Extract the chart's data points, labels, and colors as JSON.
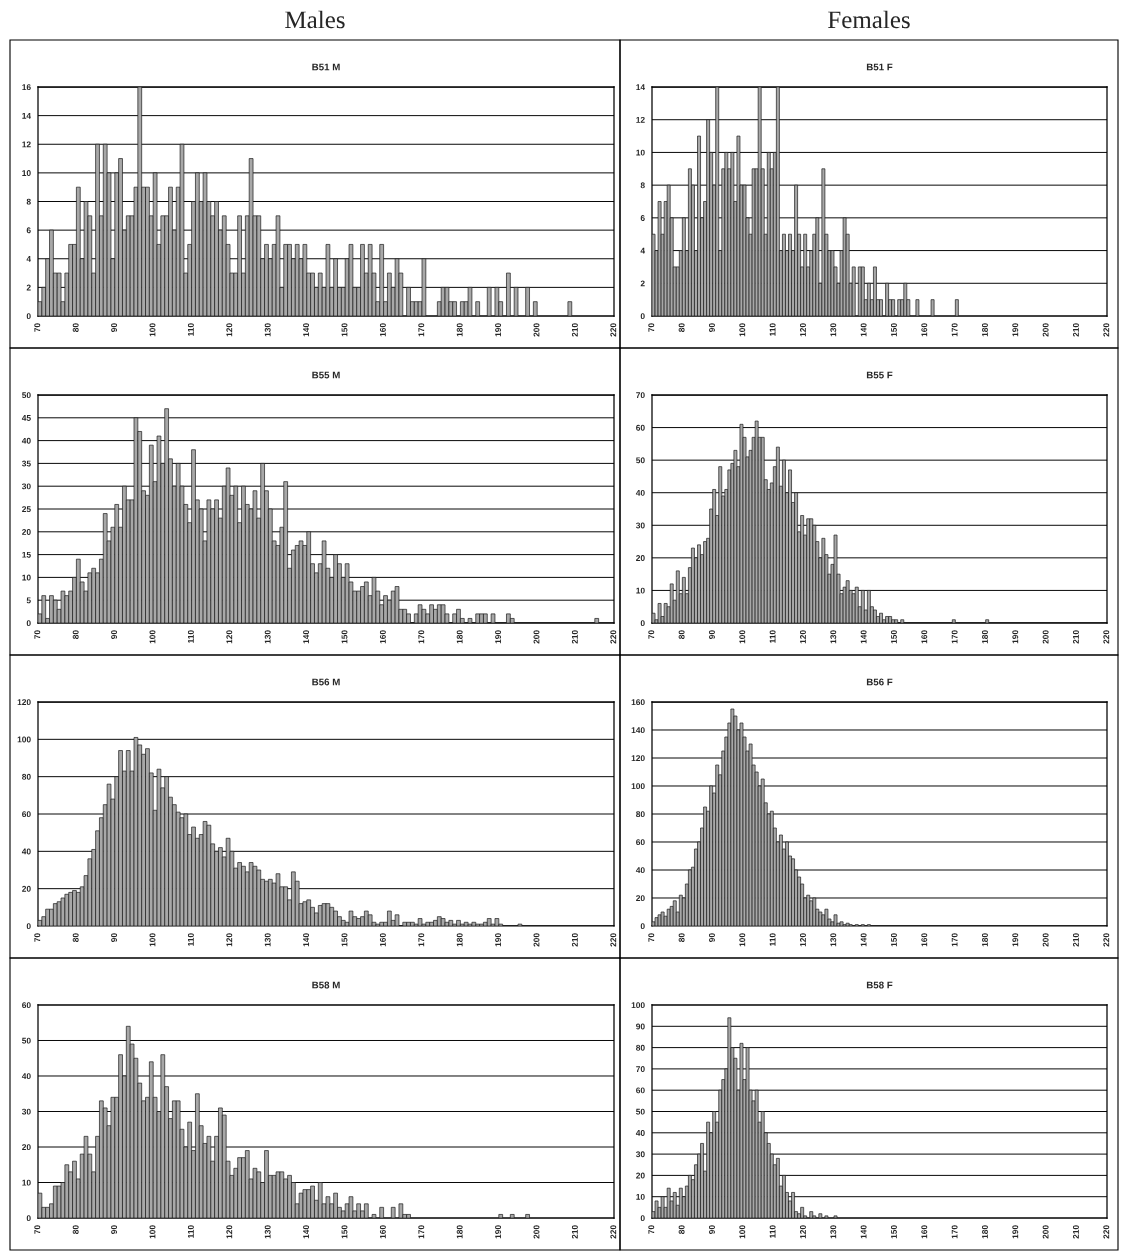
{
  "chart_data": [
    {
      "type": "histogram",
      "title": "Males",
      "subtitle": "B51 M",
      "color": "#a8a8a8",
      "grid": "y",
      "xlim": [
        70,
        220
      ],
      "xticks": [
        70,
        80,
        90,
        100,
        110,
        120,
        130,
        140,
        150,
        160,
        170,
        180,
        190,
        200,
        210,
        220
      ],
      "ylim": [
        0,
        16
      ],
      "yticks": [
        0,
        2,
        4,
        6,
        8,
        10,
        12,
        14,
        16
      ],
      "bins": [
        70,
        71,
        72,
        73,
        74,
        75,
        76,
        77,
        78,
        79,
        80,
        81,
        82,
        83,
        84,
        85,
        86,
        87,
        88,
        89,
        90,
        91,
        92,
        93,
        94,
        95,
        96,
        97,
        98,
        99,
        100,
        101,
        102,
        103,
        104,
        105,
        106,
        107,
        108,
        109,
        110,
        111,
        112,
        113,
        114,
        115,
        116,
        117,
        118,
        119,
        120,
        121,
        122,
        123,
        124,
        125,
        126,
        127,
        128,
        129,
        130,
        131,
        132,
        133,
        134,
        135,
        136,
        137,
        138,
        139,
        140,
        141,
        142,
        143,
        144,
        145,
        146,
        147,
        148,
        149,
        150,
        151,
        152,
        153,
        154,
        155,
        156,
        157,
        158,
        159,
        160,
        161,
        162,
        163,
        164,
        165,
        166,
        167,
        168,
        169,
        170,
        171,
        172,
        173,
        174,
        175,
        176,
        177,
        178,
        179,
        180,
        181,
        182,
        183,
        184,
        185,
        186,
        187,
        188,
        189,
        190,
        191,
        192,
        193,
        194,
        195,
        196,
        197,
        198,
        199,
        200,
        201,
        202,
        203,
        204,
        205,
        206,
        207,
        208,
        209
      ],
      "values": [
        1,
        2,
        4,
        6,
        3,
        3,
        1,
        3,
        5,
        5,
        9,
        4,
        8,
        7,
        3,
        12,
        7,
        12,
        10,
        4,
        10,
        11,
        6,
        7,
        7,
        9,
        16,
        9,
        9,
        7,
        10,
        5,
        7,
        7,
        9,
        6,
        9,
        12,
        3,
        5,
        8,
        10,
        8,
        10,
        8,
        7,
        8,
        6,
        7,
        5,
        3,
        3,
        7,
        3,
        7,
        11,
        7,
        7,
        4,
        5,
        4,
        5,
        7,
        2,
        5,
        5,
        4,
        5,
        4,
        5,
        3,
        3,
        2,
        3,
        2,
        5,
        2,
        4,
        2,
        2,
        4,
        5,
        2,
        2,
        5,
        3,
        5,
        3,
        1,
        5,
        1,
        3,
        2,
        4,
        3,
        0,
        2,
        1,
        1,
        1,
        4,
        0,
        0,
        0,
        1,
        2,
        2,
        1,
        1,
        0,
        1,
        1,
        2,
        0,
        1,
        0,
        0,
        2,
        0,
        2,
        1,
        0,
        3,
        0,
        2,
        0,
        0,
        2,
        0,
        1,
        0,
        0,
        0,
        0,
        0,
        0,
        0,
        0,
        1
      ]
    },
    {
      "type": "histogram",
      "title": "Females",
      "subtitle": "B51 F",
      "color": "#a8a8a8",
      "grid": "y",
      "xlim": [
        70,
        220
      ],
      "xticks": [
        70,
        80,
        90,
        100,
        110,
        120,
        130,
        140,
        150,
        160,
        170,
        180,
        190,
        200,
        210,
        220
      ],
      "ylim": [
        0,
        14
      ],
      "yticks": [
        0,
        2,
        4,
        6,
        8,
        10,
        12,
        14
      ],
      "bins": [
        70,
        71,
        72,
        73,
        74,
        75,
        76,
        77,
        78,
        79,
        80,
        81,
        82,
        83,
        84,
        85,
        86,
        87,
        88,
        89,
        90,
        91,
        92,
        93,
        94,
        95,
        96,
        97,
        98,
        99,
        100,
        101,
        102,
        103,
        104,
        105,
        106,
        107,
        108,
        109,
        110,
        111,
        112,
        113,
        114,
        115,
        116,
        117,
        118,
        119,
        120,
        121,
        122,
        123,
        124,
        125,
        126,
        127,
        128,
        129,
        130,
        131,
        132,
        133,
        134,
        135,
        136,
        137,
        138,
        139,
        140,
        141,
        142,
        143,
        144,
        145,
        146,
        147,
        148,
        149,
        150,
        151,
        152,
        153,
        154,
        155,
        156,
        157,
        158,
        159,
        160,
        161,
        162,
        163,
        164,
        165,
        166,
        167,
        168,
        169,
        170,
        171
      ],
      "values": [
        5,
        4,
        7,
        5,
        7,
        8,
        6,
        3,
        3,
        4,
        6,
        4,
        9,
        8,
        4,
        11,
        6,
        7,
        12,
        10,
        8,
        14,
        4,
        9,
        10,
        9,
        10,
        7,
        11,
        8,
        8,
        6,
        5,
        9,
        9,
        14,
        9,
        5,
        10,
        9,
        10,
        14,
        4,
        5,
        4,
        5,
        4,
        8,
        5,
        3,
        5,
        3,
        4,
        5,
        6,
        2,
        9,
        5,
        4,
        4,
        3,
        2,
        4,
        6,
        5,
        2,
        3,
        0,
        3,
        3,
        1,
        2,
        1,
        3,
        1,
        1,
        0,
        2,
        1,
        1,
        0,
        1,
        1,
        2,
        1,
        0,
        0,
        1,
        0,
        0,
        0,
        0,
        1,
        0,
        0,
        0,
        0,
        0,
        0,
        0,
        1
      ]
    },
    {
      "type": "histogram",
      "title": "B55 M",
      "color": "#a8a8a8",
      "grid": "y",
      "xlim": [
        70,
        220
      ],
      "xticks": [
        70,
        80,
        90,
        100,
        110,
        120,
        130,
        140,
        150,
        160,
        170,
        180,
        190,
        200,
        210,
        220
      ],
      "ylim": [
        0,
        50
      ],
      "yticks": [
        0,
        5,
        10,
        15,
        20,
        25,
        30,
        35,
        40,
        45,
        50
      ],
      "bins": [
        70,
        71,
        72,
        73,
        74,
        75,
        76,
        77,
        78,
        79,
        80,
        81,
        82,
        83,
        84,
        85,
        86,
        87,
        88,
        89,
        90,
        91,
        92,
        93,
        94,
        95,
        96,
        97,
        98,
        99,
        100,
        101,
        102,
        103,
        104,
        105,
        106,
        107,
        108,
        109,
        110,
        111,
        112,
        113,
        114,
        115,
        116,
        117,
        118,
        119,
        120,
        121,
        122,
        123,
        124,
        125,
        126,
        127,
        128,
        129,
        130,
        131,
        132,
        133,
        134,
        135,
        136,
        137,
        138,
        139,
        140,
        141,
        142,
        143,
        144,
        145,
        146,
        147,
        148,
        149,
        150,
        151,
        152,
        153,
        154,
        155,
        156,
        157,
        158,
        159,
        160,
        161,
        162,
        163,
        164,
        165,
        166,
        167,
        168,
        169,
        170,
        171,
        172,
        173,
        174,
        175,
        176,
        177,
        178,
        179,
        180,
        181,
        182,
        183,
        184,
        185,
        186,
        187,
        188,
        189,
        190,
        191,
        192,
        193,
        194,
        195,
        196,
        197,
        198,
        199,
        200,
        201,
        202,
        203,
        204,
        205,
        206,
        207,
        208,
        209,
        210,
        211,
        212,
        213,
        214,
        215,
        216
      ],
      "values": [
        2,
        6,
        1,
        6,
        5,
        3,
        7,
        6,
        7,
        10,
        14,
        9,
        7,
        11,
        12,
        11,
        14,
        24,
        18,
        21,
        26,
        21,
        30,
        27,
        27,
        45,
        42,
        29,
        28,
        39,
        31,
        41,
        35,
        47,
        36,
        30,
        35,
        30,
        26,
        22,
        38,
        27,
        25,
        18,
        27,
        25,
        27,
        23,
        30,
        34,
        28,
        30,
        22,
        30,
        26,
        25,
        29,
        23,
        35,
        29,
        25,
        18,
        17,
        21,
        31,
        12,
        16,
        17,
        18,
        17,
        20,
        13,
        11,
        13,
        18,
        12,
        10,
        15,
        13,
        10,
        13,
        9,
        7,
        7,
        8,
        9,
        6,
        10,
        7,
        4,
        6,
        5,
        7,
        8,
        3,
        3,
        2,
        0,
        2,
        4,
        3,
        2,
        4,
        3,
        4,
        4,
        2,
        0,
        2,
        3,
        1,
        0,
        1,
        0,
        2,
        2,
        2,
        0,
        2,
        0,
        0,
        0,
        2,
        1,
        0,
        0,
        0,
        0,
        0,
        0,
        0,
        0,
        0,
        0,
        0,
        0,
        0,
        0,
        0,
        0,
        0,
        0,
        0,
        0,
        0,
        1
      ]
    },
    {
      "type": "histogram",
      "title": "B55 F",
      "color": "#a8a8a8",
      "grid": "y",
      "xlim": [
        70,
        220
      ],
      "xticks": [
        70,
        80,
        90,
        100,
        110,
        120,
        130,
        140,
        150,
        160,
        170,
        180,
        190,
        200,
        210,
        220
      ],
      "ylim": [
        0,
        70
      ],
      "yticks": [
        0,
        10,
        20,
        30,
        40,
        50,
        60,
        70
      ],
      "bins": [
        70,
        71,
        72,
        73,
        74,
        75,
        76,
        77,
        78,
        79,
        80,
        81,
        82,
        83,
        84,
        85,
        86,
        87,
        88,
        89,
        90,
        91,
        92,
        93,
        94,
        95,
        96,
        97,
        98,
        99,
        100,
        101,
        102,
        103,
        104,
        105,
        106,
        107,
        108,
        109,
        110,
        111,
        112,
        113,
        114,
        115,
        116,
        117,
        118,
        119,
        120,
        121,
        122,
        123,
        124,
        125,
        126,
        127,
        128,
        129,
        130,
        131,
        132,
        133,
        134,
        135,
        136,
        137,
        138,
        139,
        140,
        141,
        142,
        143,
        144,
        145,
        146,
        147,
        148,
        149,
        150,
        151,
        152,
        153,
        154,
        155,
        156,
        157,
        158,
        159,
        160,
        161,
        162,
        163,
        164,
        165,
        166,
        167,
        168,
        169,
        170,
        171,
        172,
        173,
        174,
        175,
        176,
        177,
        178,
        179,
        180,
        181
      ],
      "values": [
        3,
        1,
        6,
        2,
        6,
        5,
        12,
        7,
        16,
        9,
        14,
        9,
        17,
        23,
        20,
        24,
        21,
        25,
        26,
        35,
        41,
        33,
        48,
        39,
        41,
        47,
        49,
        53,
        48,
        61,
        57,
        51,
        53,
        57,
        62,
        57,
        57,
        44,
        41,
        43,
        48,
        54,
        42,
        50,
        40,
        47,
        37,
        40,
        28,
        33,
        27,
        32,
        32,
        30,
        25,
        20,
        26,
        21,
        15,
        18,
        27,
        15,
        9,
        11,
        13,
        10,
        9,
        11,
        5,
        10,
        4,
        10,
        5,
        4,
        2,
        3,
        1,
        2,
        2,
        1,
        1,
        0,
        1,
        0,
        0,
        0,
        0,
        0,
        0,
        0,
        0,
        0,
        0,
        0,
        0,
        0,
        0,
        0,
        0,
        1,
        0,
        0,
        0,
        0,
        0,
        0,
        0,
        0,
        0,
        0,
        1
      ]
    },
    {
      "type": "histogram",
      "title": "B56 M",
      "color": "#a8a8a8",
      "grid": "y",
      "xlim": [
        70,
        220
      ],
      "xticks": [
        70,
        80,
        90,
        100,
        110,
        120,
        130,
        140,
        150,
        160,
        170,
        180,
        190,
        200,
        210,
        220
      ],
      "ylim": [
        0,
        120
      ],
      "yticks": [
        0,
        20,
        40,
        60,
        80,
        100,
        120
      ],
      "bins": [
        70,
        71,
        72,
        73,
        74,
        75,
        76,
        77,
        78,
        79,
        80,
        81,
        82,
        83,
        84,
        85,
        86,
        87,
        88,
        89,
        90,
        91,
        92,
        93,
        94,
        95,
        96,
        97,
        98,
        99,
        100,
        101,
        102,
        103,
        104,
        105,
        106,
        107,
        108,
        109,
        110,
        111,
        112,
        113,
        114,
        115,
        116,
        117,
        118,
        119,
        120,
        121,
        122,
        123,
        124,
        125,
        126,
        127,
        128,
        129,
        130,
        131,
        132,
        133,
        134,
        135,
        136,
        137,
        138,
        139,
        140,
        141,
        142,
        143,
        144,
        145,
        146,
        147,
        148,
        149,
        150,
        151,
        152,
        153,
        154,
        155,
        156,
        157,
        158,
        159,
        160,
        161,
        162,
        163,
        164,
        165,
        166,
        167,
        168,
        169,
        170,
        171,
        172,
        173,
        174,
        175,
        176,
        177,
        178,
        179,
        180,
        181,
        182,
        183,
        184,
        185,
        186,
        187,
        188,
        189,
        190,
        191,
        192,
        193,
        194,
        195,
        196
      ],
      "values": [
        3,
        5,
        9,
        9,
        12,
        13,
        15,
        17,
        18,
        19,
        18,
        21,
        27,
        36,
        41,
        51,
        58,
        65,
        76,
        68,
        80,
        94,
        83,
        94,
        83,
        101,
        97,
        92,
        95,
        82,
        62,
        84,
        74,
        80,
        69,
        65,
        61,
        58,
        60,
        49,
        53,
        47,
        49,
        56,
        54,
        44,
        40,
        42,
        37,
        47,
        40,
        31,
        34,
        32,
        29,
        34,
        32,
        30,
        25,
        24,
        25,
        23,
        28,
        21,
        21,
        14,
        29,
        24,
        12,
        13,
        14,
        10,
        7,
        11,
        12,
        12,
        10,
        8,
        5,
        3,
        2,
        8,
        5,
        4,
        5,
        8,
        6,
        2,
        1,
        2,
        2,
        8,
        3,
        6,
        0,
        2,
        2,
        2,
        1,
        4,
        1,
        2,
        2,
        3,
        5,
        4,
        2,
        3,
        1,
        3,
        1,
        2,
        1,
        2,
        1,
        1,
        2,
        4,
        1,
        4,
        1,
        0,
        0,
        0,
        0,
        1
      ]
    },
    {
      "type": "histogram",
      "title": "B56 F",
      "color": "#a8a8a8",
      "grid": "y",
      "xlim": [
        70,
        220
      ],
      "xticks": [
        70,
        80,
        90,
        100,
        110,
        120,
        130,
        140,
        150,
        160,
        170,
        180,
        190,
        200,
        210,
        220
      ],
      "ylim": [
        0,
        160
      ],
      "yticks": [
        0,
        20,
        40,
        60,
        80,
        100,
        120,
        140,
        160
      ],
      "bins": [
        70,
        71,
        72,
        73,
        74,
        75,
        76,
        77,
        78,
        79,
        80,
        81,
        82,
        83,
        84,
        85,
        86,
        87,
        88,
        89,
        90,
        91,
        92,
        93,
        94,
        95,
        96,
        97,
        98,
        99,
        100,
        101,
        102,
        103,
        104,
        105,
        106,
        107,
        108,
        109,
        110,
        111,
        112,
        113,
        114,
        115,
        116,
        117,
        118,
        119,
        120,
        121,
        122,
        123,
        124,
        125,
        126,
        127,
        128,
        129,
        130,
        131,
        132,
        133,
        134,
        135,
        136,
        137,
        138,
        139,
        140,
        141,
        142
      ],
      "values": [
        3,
        6,
        8,
        10,
        7,
        12,
        14,
        18,
        10,
        22,
        20,
        30,
        40,
        42,
        55,
        60,
        70,
        85,
        82,
        100,
        95,
        115,
        108,
        125,
        135,
        145,
        155,
        150,
        140,
        145,
        135,
        125,
        130,
        115,
        110,
        100,
        105,
        88,
        80,
        82,
        70,
        60,
        65,
        55,
        60,
        50,
        48,
        40,
        35,
        30,
        20,
        22,
        18,
        20,
        12,
        10,
        8,
        12,
        5,
        3,
        8,
        2,
        3,
        1,
        2,
        1,
        0,
        1,
        0,
        1,
        0,
        1
      ]
    },
    {
      "type": "histogram",
      "title": "B58 M",
      "color": "#a8a8a8",
      "grid": "y",
      "xlim": [
        70,
        220
      ],
      "xticks": [
        70,
        80,
        90,
        100,
        110,
        120,
        130,
        140,
        150,
        160,
        170,
        180,
        190,
        200,
        210,
        220
      ],
      "ylim": [
        0,
        60
      ],
      "yticks": [
        0,
        10,
        20,
        30,
        40,
        50,
        60
      ],
      "bins": [
        70,
        71,
        72,
        73,
        74,
        75,
        76,
        77,
        78,
        79,
        80,
        81,
        82,
        83,
        84,
        85,
        86,
        87,
        88,
        89,
        90,
        91,
        92,
        93,
        94,
        95,
        96,
        97,
        98,
        99,
        100,
        101,
        102,
        103,
        104,
        105,
        106,
        107,
        108,
        109,
        110,
        111,
        112,
        113,
        114,
        115,
        116,
        117,
        118,
        119,
        120,
        121,
        122,
        123,
        124,
        125,
        126,
        127,
        128,
        129,
        130,
        131,
        132,
        133,
        134,
        135,
        136,
        137,
        138,
        139,
        140,
        141,
        142,
        143,
        144,
        145,
        146,
        147,
        148,
        149,
        150,
        151,
        152,
        153,
        154,
        155,
        156,
        157,
        158,
        159,
        160,
        161,
        162,
        163,
        164,
        165,
        166,
        167,
        168,
        169,
        170,
        171,
        172,
        173,
        174,
        175,
        176,
        177,
        178,
        179,
        180,
        181,
        182,
        183,
        184,
        185,
        186,
        187,
        188,
        189,
        190,
        191,
        192,
        193,
        194,
        195,
        196,
        197,
        198
      ],
      "values": [
        7,
        3,
        3,
        4,
        9,
        9,
        10,
        15,
        13,
        16,
        11,
        18,
        23,
        18,
        13,
        23,
        33,
        31,
        26,
        34,
        34,
        46,
        40,
        54,
        49,
        45,
        38,
        33,
        34,
        44,
        34,
        30,
        46,
        37,
        28,
        33,
        33,
        25,
        20,
        27,
        19,
        35,
        26,
        21,
        23,
        16,
        23,
        31,
        29,
        16,
        12,
        14,
        17,
        17,
        19,
        11,
        14,
        13,
        10,
        19,
        12,
        12,
        13,
        13,
        11,
        12,
        10,
        4,
        7,
        8,
        8,
        9,
        5,
        10,
        4,
        6,
        4,
        7,
        3,
        2,
        4,
        6,
        2,
        4,
        2,
        4,
        0,
        1,
        0,
        3,
        0,
        0,
        3,
        0,
        4,
        1,
        1,
        0,
        0,
        0,
        0,
        0,
        0,
        0,
        0,
        0,
        0,
        0,
        0,
        0,
        0,
        0,
        0,
        0,
        0,
        0,
        0,
        0,
        0,
        0,
        1,
        0,
        0,
        1,
        0,
        0,
        0,
        1
      ]
    },
    {
      "type": "histogram",
      "title": "B58 F",
      "color": "#a8a8a8",
      "grid": "y",
      "xlim": [
        70,
        220
      ],
      "xticks": [
        70,
        80,
        90,
        100,
        110,
        120,
        130,
        140,
        150,
        160,
        170,
        180,
        190,
        200,
        210,
        220
      ],
      "ylim": [
        0,
        100
      ],
      "yticks": [
        0,
        10,
        20,
        30,
        40,
        50,
        60,
        70,
        80,
        90,
        100
      ],
      "bins": [
        70,
        71,
        72,
        73,
        74,
        75,
        76,
        77,
        78,
        79,
        80,
        81,
        82,
        83,
        84,
        85,
        86,
        87,
        88,
        89,
        90,
        91,
        92,
        93,
        94,
        95,
        96,
        97,
        98,
        99,
        100,
        101,
        102,
        103,
        104,
        105,
        106,
        107,
        108,
        109,
        110,
        111,
        112,
        113,
        114,
        115,
        116,
        117,
        118,
        119,
        120,
        121,
        122,
        123,
        124,
        125,
        126,
        127,
        128,
        129,
        130,
        131
      ],
      "values": [
        3,
        8,
        5,
        10,
        5,
        14,
        8,
        12,
        6,
        14,
        10,
        15,
        20,
        18,
        25,
        30,
        35,
        22,
        45,
        40,
        50,
        45,
        60,
        65,
        70,
        94,
        80,
        75,
        60,
        82,
        65,
        80,
        60,
        55,
        60,
        45,
        50,
        40,
        35,
        30,
        25,
        28,
        15,
        20,
        12,
        8,
        12,
        3,
        2,
        5,
        1,
        0,
        3,
        1,
        0,
        2,
        0,
        1,
        0,
        0,
        1
      ]
    }
  ]
}
